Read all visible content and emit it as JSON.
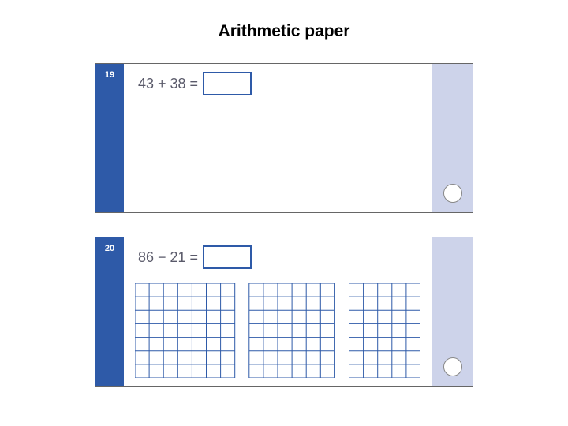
{
  "title": "Arithmetic paper",
  "colors": {
    "num_col_bg": "#2e5aa8",
    "mark_col_bg": "#cdd3ea",
    "grid_line": "#2e5aa8",
    "equation_text": "#5a5a6a",
    "num_text": "#ffffff",
    "card_border": "#666666",
    "background": "#ffffff"
  },
  "questions": [
    {
      "number": "19",
      "equation": "43 + 38 =",
      "has_grid": false
    },
    {
      "number": "20",
      "equation": "86 − 21 =",
      "has_grid": true,
      "grid": {
        "cols": 20,
        "rows": 7,
        "panels": 3,
        "gap_cols": [
          7,
          14
        ]
      }
    }
  ]
}
